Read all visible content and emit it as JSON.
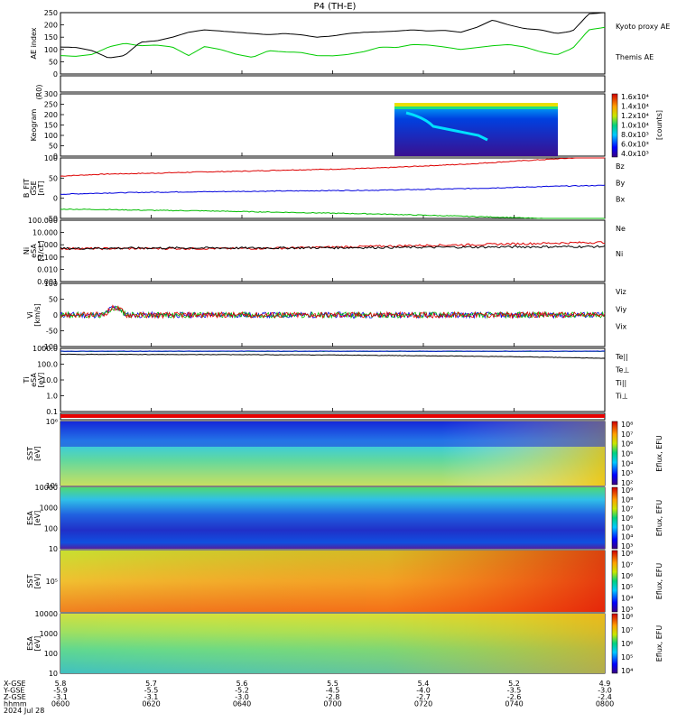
{
  "title": "P4 (TH-E)",
  "chart_data": [
    {
      "type": "line",
      "panel": "ae",
      "ylabel": "AE index",
      "yticks": [
        "250",
        "200",
        "150",
        "100",
        "50",
        "0"
      ],
      "ylim": [
        0,
        250
      ],
      "series": [
        {
          "name": "Kyoto proxy AE",
          "color": "#00cc00",
          "values": [
            75,
            72,
            80,
            110,
            125,
            115,
            118,
            110,
            75,
            112,
            100,
            80,
            68,
            95,
            90,
            88,
            75,
            74,
            80,
            92,
            110,
            108,
            120,
            118,
            110,
            100,
            108,
            115,
            120,
            110,
            90,
            78,
            105,
            180,
            190
          ]
        },
        {
          "name": "Themis AE",
          "color": "#000000",
          "values": [
            110,
            108,
            95,
            65,
            75,
            130,
            135,
            150,
            170,
            180,
            175,
            170,
            165,
            160,
            165,
            160,
            150,
            155,
            165,
            170,
            172,
            175,
            180,
            175,
            178,
            170,
            190,
            220,
            200,
            185,
            180,
            165,
            175,
            245,
            250
          ]
        }
      ]
    },
    {
      "type": "heatmap",
      "panel": "keogram",
      "ylabel": "Keogram",
      "ytop": "(R0)",
      "yticks": [
        "300",
        "250",
        "200",
        "150",
        "100",
        "50",
        "0"
      ],
      "cbar_ticks": [
        "1.6x10⁴",
        "1.4x10⁴",
        "1.2x10⁴",
        "1.0x10⁴",
        "8.0x10³",
        "6.0x10³",
        "4.0x10³"
      ],
      "cbar_label": "[counts]"
    },
    {
      "type": "line",
      "panel": "b",
      "ylabel_lines": [
        "B_FIT",
        "GSE",
        "[nT]"
      ],
      "yticks": [
        "100",
        "50",
        "0",
        "-50"
      ],
      "ylim": [
        -50,
        100
      ],
      "series": [
        {
          "name": "Bz",
          "color": "#dd0000",
          "values": [
            55,
            60,
            62,
            65,
            67,
            70,
            72,
            75,
            80,
            85,
            92,
            98,
            104
          ]
        },
        {
          "name": "By",
          "color": "#0000dd",
          "values": [
            10,
            13,
            15,
            16,
            17,
            18,
            19,
            20,
            22,
            24,
            27,
            30,
            32
          ]
        },
        {
          "name": "Bx",
          "color": "#00bb00",
          "values": [
            -27,
            -28,
            -30,
            -31,
            -33,
            -35,
            -37,
            -39,
            -42,
            -45,
            -48,
            -52,
            -55
          ]
        }
      ]
    },
    {
      "type": "line",
      "panel": "n",
      "ylabel_lines": [
        "Ni",
        "eSA",
        "[1/cc]"
      ],
      "yticks": [
        "100.000",
        "10.000",
        "1.000",
        "0.100",
        "0.010",
        "0.001"
      ],
      "log": true,
      "ylim": [
        0.001,
        100
      ],
      "series": [
        {
          "name": "Ne",
          "color": "#dd0000",
          "values": [
            0.5,
            0.5,
            0.5,
            0.5,
            0.5,
            0.55,
            0.65,
            0.75,
            0.9,
            1.0,
            1.2,
            1.4,
            1.6
          ]
        },
        {
          "name": "Ni",
          "color": "#000000",
          "values": [
            0.5,
            0.52,
            0.55,
            0.55,
            0.55,
            0.56,
            0.58,
            0.6,
            0.62,
            0.65,
            0.68,
            0.7,
            0.72
          ]
        }
      ]
    },
    {
      "type": "line",
      "panel": "v",
      "ylabel_lines": [
        "Vi",
        "[km/s]"
      ],
      "yticks": [
        "100",
        "50",
        "0",
        "-50",
        "-100"
      ],
      "ylim": [
        -120,
        120
      ],
      "series": [
        {
          "name": "Viz",
          "color": "#dd0000"
        },
        {
          "name": "Viy",
          "color": "#00bb00"
        },
        {
          "name": "Vix",
          "color": "#0000dd"
        }
      ]
    },
    {
      "type": "line",
      "panel": "t",
      "ylabel_lines": [
        "Ti",
        "eSA",
        "[eV]"
      ],
      "yticks": [
        "1000.0",
        "100.0",
        "10.0",
        "1.0",
        "0.1"
      ],
      "log": true,
      "ylim": [
        0.05,
        2500
      ],
      "series": [
        {
          "name": "Te||",
          "color": "#000000"
        },
        {
          "name": "Te⊥",
          "color": "#dd0000"
        },
        {
          "name": "Ti||",
          "color": "#00bb00"
        },
        {
          "name": "Ti⊥",
          "color": "#0000dd"
        }
      ]
    },
    {
      "type": "heatmap",
      "panel": "sst_e",
      "ylabel_lines": [
        "SST",
        "[eV]"
      ],
      "yticks": [
        "10⁶",
        "10⁵"
      ],
      "cbar_ticks": [
        "10⁸",
        "10⁷",
        "10⁶",
        "10⁵",
        "10⁴",
        "10³",
        "10²"
      ],
      "cbar_label": "Eflux, EFU"
    },
    {
      "type": "heatmap",
      "panel": "esa_e",
      "ylabel_lines": [
        "ESA",
        "[eV]"
      ],
      "yticks": [
        "10000",
        "1000",
        "100",
        "10"
      ],
      "cbar_ticks": [
        "10⁹",
        "10⁸",
        "10⁷",
        "10⁶",
        "10⁵",
        "10⁴",
        "10³"
      ],
      "cbar_label": "Eflux, EFU"
    },
    {
      "type": "heatmap",
      "panel": "sst_i",
      "ylabel_lines": [
        "SST",
        "[eV]"
      ],
      "yticks": [
        "10⁵"
      ],
      "cbar_ticks": [
        "10⁸",
        "10⁷",
        "10⁶",
        "10⁵",
        "10⁴",
        "10³"
      ],
      "cbar_label": "Eflux, EFU"
    },
    {
      "type": "heatmap",
      "panel": "esa_i",
      "ylabel_lines": [
        "ESA",
        "[eV]"
      ],
      "yticks": [
        "10000",
        "1000",
        "100",
        "10"
      ],
      "cbar_ticks": [
        "10⁸",
        "10⁷",
        "10⁶",
        "10⁵",
        "10⁴"
      ],
      "cbar_label": "Eflux, EFU"
    }
  ],
  "xaxis": {
    "row_labels": [
      "X-GSE",
      "Y-GSE",
      "Z-GSE",
      "hhmm",
      "2024 Jul 28"
    ],
    "columns": [
      [
        "5.8",
        "-5.9",
        "-3.1",
        "0600"
      ],
      [
        "5.7",
        "-5.5",
        "-3.1",
        "0620"
      ],
      [
        "5.6",
        "-5.2",
        "-3.0",
        "0640"
      ],
      [
        "5.5",
        "-4.5",
        "-2.8",
        "0700"
      ],
      [
        "5.4",
        "-4.0",
        "-2.7",
        "0720"
      ],
      [
        "5.2",
        "-3.5",
        "-2.6",
        "0740"
      ],
      [
        "4.9",
        "-3.0",
        "-2.4",
        "0800"
      ]
    ]
  }
}
